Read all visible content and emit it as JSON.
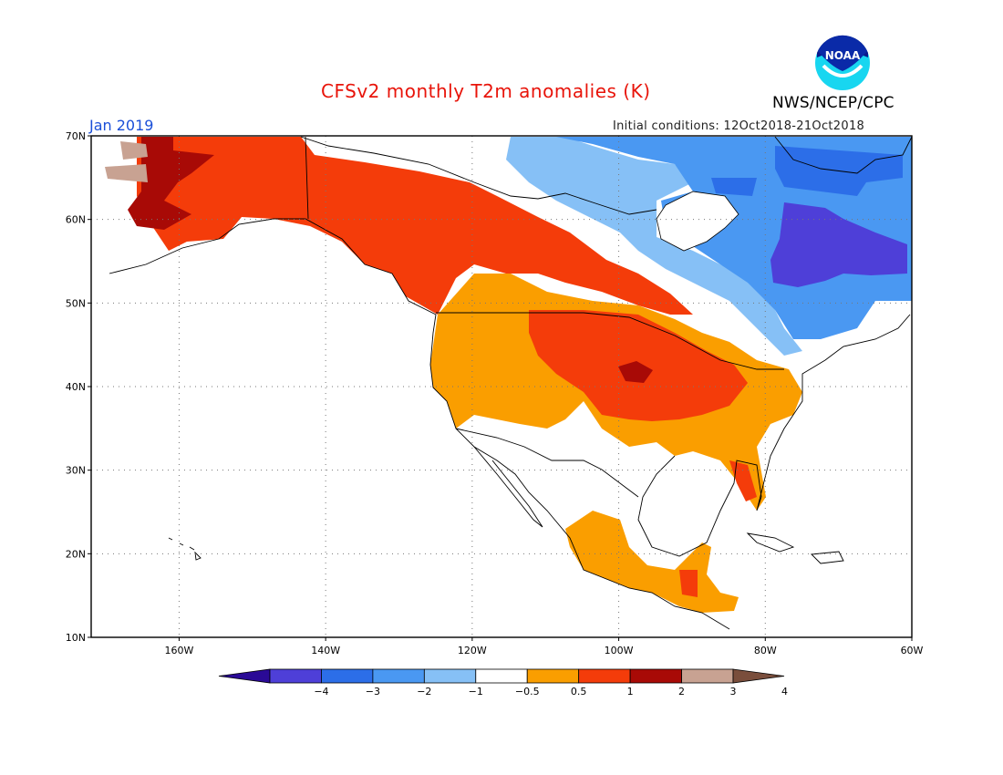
{
  "header": {
    "title": "CFSv2 monthly T2m anomalies (K)",
    "title_color": "#e8140a",
    "period": "Jan 2019",
    "period_color": "#1a4fd8",
    "initial_conditions": "Initial conditions: 12Oct2018-21Oct2018",
    "agency": "NWS/NCEP/CPC",
    "logo_icon": "noaa-logo-icon",
    "logo_text": "NOAA"
  },
  "map": {
    "projection": "equirectangular",
    "lon_range": [
      -172,
      -60
    ],
    "lat_range": [
      10,
      70
    ],
    "grid": "dotted",
    "lon_ticks": [
      {
        "value": -160,
        "label": "160W"
      },
      {
        "value": -140,
        "label": "140W"
      },
      {
        "value": -120,
        "label": "120W"
      },
      {
        "value": -100,
        "label": "100W"
      },
      {
        "value": -80,
        "label": "80W"
      },
      {
        "value": -60,
        "label": "60W"
      }
    ],
    "lat_ticks": [
      {
        "value": 10,
        "label": "10N"
      },
      {
        "value": 20,
        "label": "20N"
      },
      {
        "value": 30,
        "label": "30N"
      },
      {
        "value": 40,
        "label": "40N"
      },
      {
        "value": 50,
        "label": "50N"
      },
      {
        "value": 60,
        "label": "60N"
      },
      {
        "value": 70,
        "label": "70N"
      }
    ]
  },
  "legend": {
    "labels": [
      "-4",
      "-3",
      "-2",
      "-1",
      "-0.5",
      "0.5",
      "1",
      "2",
      "3",
      "4"
    ],
    "colors": [
      "#2a0a96",
      "#4e3fd8",
      "#2c6ee8",
      "#4a98f2",
      "#86c0f6",
      "#ffffff",
      "#fa9e00",
      "#f43c0a",
      "#a80a06",
      "#c8a292",
      "#7a4e3c"
    ]
  },
  "anomaly_regions": [
    {
      "level": "1 to 2",
      "color": "#f43c0a",
      "region": "Alaska and western Canada"
    },
    {
      "level": "2 to 3",
      "color": "#a80a06",
      "region": "western Alaska"
    },
    {
      "level": "3 to 4",
      "color": "#c8a292",
      "region": "Alaska west coast"
    },
    {
      "level": "0.5 to 1",
      "color": "#fa9e00",
      "region": "western and southern United States"
    },
    {
      "level": "1 to 2",
      "color": "#f43c0a",
      "region": "central United States"
    },
    {
      "level": "2 to 3",
      "color": "#a80a06",
      "region": "Nebraska / Kansas border"
    },
    {
      "level": "0.5 to 1",
      "color": "#fa9e00",
      "region": "Mexico and Central America"
    },
    {
      "level": "-0.5 to -1",
      "color": "#86c0f6",
      "region": "Hudson Bay band"
    },
    {
      "level": "-1 to -2",
      "color": "#4a98f2",
      "region": "northeastern Canada"
    },
    {
      "level": "-2 to -3",
      "color": "#2c6ee8",
      "region": "Baffin Island"
    },
    {
      "level": "-3 to -4",
      "color": "#4e3fd8",
      "region": "Labrador and northern Quebec"
    }
  ]
}
